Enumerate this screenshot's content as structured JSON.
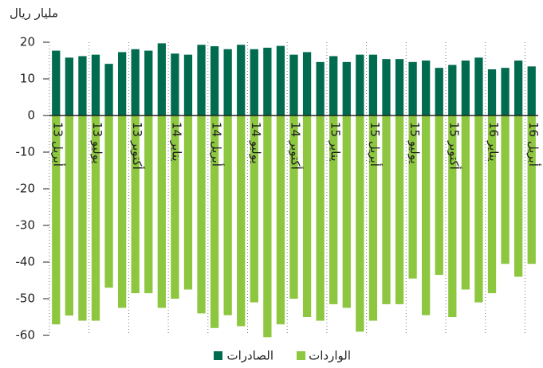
{
  "chart_data": {
    "type": "bar",
    "y_label": "مليار ريال",
    "categories": [
      "أبريل 13",
      null,
      null,
      "يوليو 13",
      null,
      null,
      "أكتوبر 13",
      null,
      null,
      "يناير 14",
      null,
      null,
      "أبريل 14",
      null,
      null,
      "يوليو 14",
      null,
      null,
      "أكتوبر 14",
      null,
      null,
      "يناير 15",
      null,
      null,
      "أبريل 15",
      null,
      null,
      "يوليو 15",
      null,
      null,
      "أكتوبر 15",
      null,
      null,
      "يناير 16",
      null,
      null,
      "أبريل 16"
    ],
    "series": [
      {
        "name": "الصادرات",
        "color": "#006b4f",
        "values": [
          17.7,
          15.8,
          16.2,
          16.6,
          14.1,
          17.3,
          18.1,
          17.7,
          19.7,
          16.9,
          16.6,
          19.3,
          18.9,
          18.1,
          19.3,
          18.1,
          18.5,
          19.0,
          16.6,
          17.3,
          14.6,
          16.2,
          14.6,
          16.6,
          16.6,
          15.4,
          15.4,
          14.6,
          15.0,
          13.0,
          13.8,
          15.0,
          15.8,
          12.6,
          13.0,
          15.0,
          13.4
        ]
      },
      {
        "name": "الواردات",
        "color": "#8dc63f",
        "values": [
          -57,
          -54.6,
          -56,
          -56,
          -47,
          -52.5,
          -48.5,
          -48.5,
          -52.5,
          -50,
          -47.5,
          -54,
          -58,
          -54.5,
          -57.5,
          -51,
          -60.5,
          -57,
          -50,
          -55,
          -56,
          -51.5,
          -52.5,
          -59,
          -56,
          -51.5,
          -51.5,
          -44.5,
          -54.5,
          -43.5,
          -55,
          -47.5,
          -51,
          -48.5,
          -40.5,
          -44,
          -40.5
        ]
      }
    ],
    "ylim": [
      -60,
      20
    ],
    "yticks": [
      -60,
      -50,
      -40,
      -30,
      -20,
      -10,
      0,
      10,
      20
    ]
  }
}
